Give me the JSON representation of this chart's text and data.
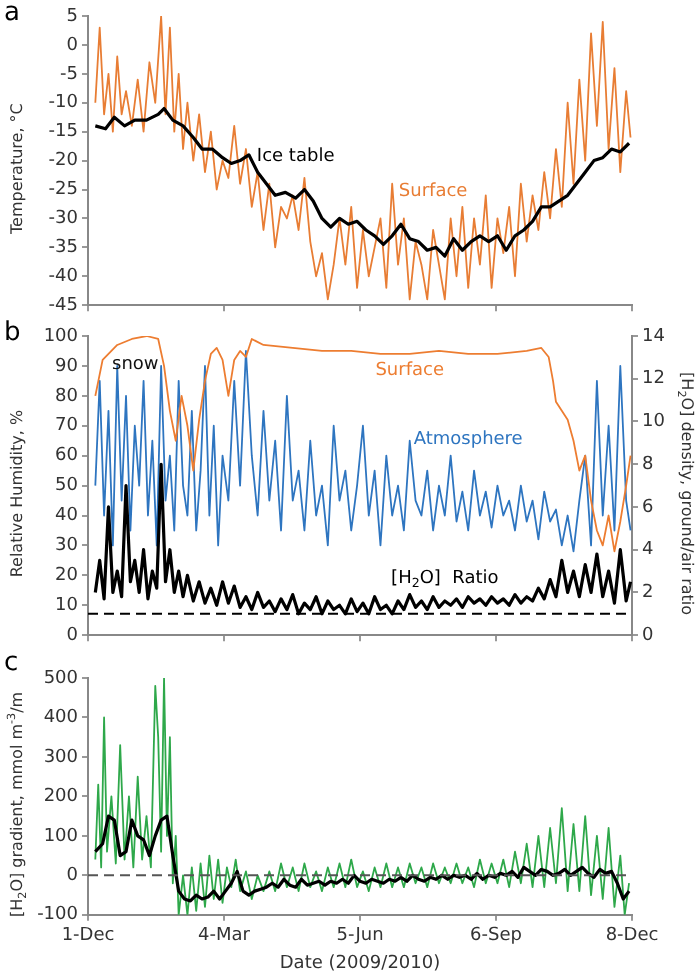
{
  "chart_data": [
    {
      "type": "line",
      "title": "a",
      "ylabel": "Temperature, °C",
      "xlim": [
        "2009-12-01",
        "2010-12-08"
      ],
      "ylim": [
        -45,
        5
      ],
      "yticks": [
        -45,
        -40,
        -35,
        -30,
        -25,
        -20,
        -15,
        -10,
        -5,
        0,
        5
      ],
      "grid": false,
      "legend": false,
      "tick_labels": "y",
      "series": [
        {
          "name": "Surface",
          "color": "#e87d34",
          "x": [
            "2009-12-06",
            "2009-12-09",
            "2009-12-12",
            "2009-12-15",
            "2009-12-18",
            "2009-12-21",
            "2009-12-24",
            "2009-12-27",
            "2009-12-31",
            "2010-01-04",
            "2010-01-08",
            "2010-01-12",
            "2010-01-16",
            "2010-01-20",
            "2010-01-23",
            "2010-01-26",
            "2010-01-29",
            "2010-02-01",
            "2010-02-04",
            "2010-02-07",
            "2010-02-11",
            "2010-02-15",
            "2010-02-19",
            "2010-02-23",
            "2010-02-27",
            "2010-03-03",
            "2010-03-07",
            "2010-03-11",
            "2010-03-15",
            "2010-03-19",
            "2010-03-23",
            "2010-03-27",
            "2010-03-31",
            "2010-04-04",
            "2010-04-08",
            "2010-04-12",
            "2010-04-16",
            "2010-04-20",
            "2010-04-24",
            "2010-04-28",
            "2010-05-02",
            "2010-05-06",
            "2010-05-10",
            "2010-05-14",
            "2010-05-18",
            "2010-05-22",
            "2010-05-26",
            "2010-05-30",
            "2010-06-03",
            "2010-06-07",
            "2010-06-11",
            "2010-06-15",
            "2010-06-19",
            "2010-06-23",
            "2010-06-27",
            "2010-07-01",
            "2010-07-05",
            "2010-07-09",
            "2010-07-13",
            "2010-07-17",
            "2010-07-21",
            "2010-07-25",
            "2010-07-29",
            "2010-08-02",
            "2010-08-06",
            "2010-08-10",
            "2010-08-14",
            "2010-08-18",
            "2010-08-22",
            "2010-08-26",
            "2010-08-30",
            "2010-09-03",
            "2010-09-07",
            "2010-09-11",
            "2010-09-15",
            "2010-09-19",
            "2010-09-23",
            "2010-09-27",
            "2010-10-01",
            "2010-10-05",
            "2010-10-09",
            "2010-10-13",
            "2010-10-17",
            "2010-10-21",
            "2010-10-25",
            "2010-10-29",
            "2010-11-02",
            "2010-11-06",
            "2010-11-10",
            "2010-11-14",
            "2010-11-18",
            "2010-11-22",
            "2010-11-26",
            "2010-11-30",
            "2010-12-04",
            "2010-12-07"
          ],
          "values": [
            -10,
            3,
            -12,
            -5,
            -15,
            -2,
            -12,
            -8,
            -14,
            -6,
            -15,
            -3,
            -10,
            5,
            -12,
            3,
            -15,
            -5,
            -18,
            -10,
            -20,
            -12,
            -22,
            -15,
            -25,
            -20,
            -23,
            -14,
            -24,
            -18,
            -28,
            -22,
            -32,
            -24,
            -35,
            -28,
            -30,
            -26,
            -32,
            -23,
            -34,
            -40,
            -36,
            -44,
            -38,
            -30,
            -38,
            -28,
            -42,
            -32,
            -40,
            -35,
            -30,
            -42,
            -24,
            -38,
            -30,
            -44,
            -34,
            -38,
            -44,
            -32,
            -38,
            -44,
            -30,
            -40,
            -28,
            -42,
            -30,
            -38,
            -26,
            -42,
            -30,
            -36,
            -28,
            -40,
            -24,
            -34,
            -26,
            -32,
            -22,
            -30,
            -18,
            -28,
            -10,
            -24,
            -6,
            -20,
            2,
            -14,
            4,
            -18,
            -4,
            -22,
            -8,
            -16
          ]
        },
        {
          "name": "Ice table",
          "color": "#000000",
          "x": [
            "2009-12-06",
            "2009-12-13",
            "2009-12-19",
            "2009-12-26",
            "2010-01-02",
            "2010-01-10",
            "2010-01-18",
            "2010-01-22",
            "2010-01-28",
            "2010-02-04",
            "2010-02-11",
            "2010-02-17",
            "2010-02-24",
            "2010-03-03",
            "2010-03-09",
            "2010-03-15",
            "2010-03-21",
            "2010-03-27",
            "2010-04-02",
            "2010-04-08",
            "2010-04-15",
            "2010-04-22",
            "2010-04-28",
            "2010-05-04",
            "2010-05-10",
            "2010-05-16",
            "2010-05-22",
            "2010-05-28",
            "2010-06-03",
            "2010-06-09",
            "2010-06-15",
            "2010-06-21",
            "2010-06-27",
            "2010-07-03",
            "2010-07-09",
            "2010-07-15",
            "2010-07-21",
            "2010-07-27",
            "2010-08-02",
            "2010-08-08",
            "2010-08-14",
            "2010-08-20",
            "2010-08-26",
            "2010-09-01",
            "2010-09-07",
            "2010-09-13",
            "2010-09-19",
            "2010-09-25",
            "2010-10-01",
            "2010-10-07",
            "2010-10-13",
            "2010-10-19",
            "2010-10-25",
            "2010-10-31",
            "2010-11-06",
            "2010-11-12",
            "2010-11-18",
            "2010-11-24",
            "2010-11-30",
            "2010-12-06"
          ],
          "values": [
            -14,
            -14.5,
            -12.5,
            -14,
            -13,
            -13,
            -12,
            -11,
            -13,
            -14,
            -16,
            -18,
            -18,
            -19.5,
            -20.5,
            -20,
            -19,
            -22,
            -24,
            -26,
            -25.5,
            -26.5,
            -25,
            -27,
            -30,
            -31.5,
            -30,
            -31,
            -30.5,
            -32,
            -33,
            -34.5,
            -33,
            -31,
            -33.5,
            -34,
            -35.5,
            -35,
            -36.5,
            -33.5,
            -35.5,
            -34,
            -33,
            -34,
            -33,
            -35.5,
            -33,
            -32,
            -30.5,
            -28,
            -28,
            -27,
            -26,
            -24,
            -22,
            -20,
            -19.5,
            -18,
            -18.5,
            -17
          ]
        }
      ]
    },
    {
      "type": "line",
      "title": "b",
      "ylabel": "Relative Humidity, %",
      "y2label": "[H$_{2}$O] density, ground/air ratio",
      "xlim": [
        "2009-12-01",
        "2010-12-08"
      ],
      "ylim": [
        0,
        100
      ],
      "yticks": [
        0,
        10,
        20,
        30,
        40,
        50,
        60,
        70,
        80,
        90,
        100
      ],
      "y2lim": [
        0,
        14
      ],
      "y2ticks": [
        0,
        2,
        4,
        6,
        8,
        10,
        12,
        14
      ],
      "grid": false,
      "legend": false,
      "tick_labels": "y",
      "ref_lines": [
        {
          "axis": "y2",
          "value": 1,
          "label": null,
          "color": "#000000",
          "line_style": "dashed"
        }
      ],
      "annotations": [
        "snow"
      ],
      "series": [
        {
          "name": "Atmosphere",
          "color": "#2e75c0",
          "x": [
            "2009-12-06",
            "2009-12-09",
            "2009-12-12",
            "2009-12-15",
            "2009-12-18",
            "2009-12-21",
            "2009-12-24",
            "2009-12-27",
            "2009-12-30",
            "2010-01-02",
            "2010-01-05",
            "2010-01-08",
            "2010-01-11",
            "2010-01-14",
            "2010-01-17",
            "2010-01-20",
            "2010-01-23",
            "2010-01-26",
            "2010-01-29",
            "2010-02-01",
            "2010-02-04",
            "2010-02-07",
            "2010-02-10",
            "2010-02-13",
            "2010-02-16",
            "2010-02-19",
            "2010-02-22",
            "2010-02-25",
            "2010-02-28",
            "2010-03-03",
            "2010-03-07",
            "2010-03-11",
            "2010-03-15",
            "2010-03-19",
            "2010-03-23",
            "2010-03-27",
            "2010-03-31",
            "2010-04-04",
            "2010-04-08",
            "2010-04-12",
            "2010-04-16",
            "2010-04-20",
            "2010-04-24",
            "2010-04-28",
            "2010-05-02",
            "2010-05-06",
            "2010-05-10",
            "2010-05-14",
            "2010-05-18",
            "2010-05-22",
            "2010-05-26",
            "2010-05-30",
            "2010-06-03",
            "2010-06-07",
            "2010-06-11",
            "2010-06-15",
            "2010-06-19",
            "2010-06-23",
            "2010-06-27",
            "2010-07-01",
            "2010-07-05",
            "2010-07-09",
            "2010-07-13",
            "2010-07-17",
            "2010-07-21",
            "2010-07-25",
            "2010-07-29",
            "2010-08-02",
            "2010-08-06",
            "2010-08-10",
            "2010-08-14",
            "2010-08-18",
            "2010-08-22",
            "2010-08-26",
            "2010-08-30",
            "2010-09-03",
            "2010-09-07",
            "2010-09-11",
            "2010-09-15",
            "2010-09-19",
            "2010-09-23",
            "2010-09-27",
            "2010-10-01",
            "2010-10-05",
            "2010-10-09",
            "2010-10-13",
            "2010-10-17",
            "2010-10-21",
            "2010-10-25",
            "2010-10-29",
            "2010-11-02",
            "2010-11-06",
            "2010-11-10",
            "2010-11-14",
            "2010-11-18",
            "2010-11-22",
            "2010-11-26",
            "2010-11-30",
            "2010-12-04",
            "2010-12-07"
          ],
          "values": [
            50,
            85,
            40,
            75,
            30,
            90,
            45,
            80,
            35,
            70,
            50,
            85,
            40,
            65,
            30,
            90,
            45,
            60,
            35,
            85,
            50,
            40,
            75,
            35,
            55,
            90,
            40,
            70,
            30,
            60,
            45,
            85,
            50,
            95,
            60,
            40,
            75,
            45,
            65,
            35,
            80,
            45,
            55,
            35,
            65,
            40,
            50,
            30,
            70,
            45,
            55,
            35,
            50,
            70,
            40,
            55,
            30,
            60,
            40,
            50,
            35,
            65,
            45,
            40,
            55,
            35,
            50,
            40,
            60,
            38,
            48,
            35,
            55,
            40,
            48,
            36,
            50,
            40,
            45,
            35,
            50,
            38,
            45,
            32,
            48,
            38,
            42,
            30,
            40,
            28,
            45,
            60,
            30,
            85,
            40,
            70,
            35,
            90,
            45,
            35
          ]
        },
        {
          "name": "Surface",
          "color": "#ed7d31",
          "x": [
            "2009-12-06",
            "2009-12-11",
            "2009-12-21",
            "2009-12-31",
            "2010-01-10",
            "2010-01-18",
            "2010-01-22",
            "2010-01-26",
            "2010-01-30",
            "2010-02-03",
            "2010-02-07",
            "2010-02-11",
            "2010-02-15",
            "2010-02-19",
            "2010-02-23",
            "2010-02-27",
            "2010-03-03",
            "2010-03-07",
            "2010-03-11",
            "2010-03-15",
            "2010-03-19",
            "2010-03-23",
            "2010-03-31",
            "2010-04-20",
            "2010-05-10",
            "2010-05-30",
            "2010-06-19",
            "2010-07-09",
            "2010-07-29",
            "2010-08-18",
            "2010-09-07",
            "2010-09-27",
            "2010-10-07",
            "2010-10-12",
            "2010-10-15",
            "2010-10-17",
            "2010-10-21",
            "2010-10-25",
            "2010-10-29",
            "2010-11-02",
            "2010-11-06",
            "2010-11-10",
            "2010-11-14",
            "2010-11-18",
            "2010-11-22",
            "2010-11-26",
            "2010-11-30",
            "2010-12-04",
            "2010-12-07"
          ],
          "values": [
            80,
            92,
            97,
            99,
            100,
            99,
            90,
            75,
            65,
            80,
            70,
            55,
            72,
            85,
            94,
            96,
            92,
            80,
            92,
            95,
            93,
            99,
            97,
            96,
            95,
            95,
            94,
            94,
            95,
            94,
            94,
            95,
            96,
            93,
            85,
            78,
            75,
            72,
            65,
            55,
            60,
            45,
            35,
            30,
            40,
            28,
            38,
            50,
            60
          ]
        },
        {
          "name": "[H$_{2}$O]  Ratio",
          "color": "#000000",
          "axis": "y2",
          "x": [
            "2009-12-06",
            "2009-12-09",
            "2009-12-12",
            "2009-12-15",
            "2009-12-18",
            "2009-12-21",
            "2009-12-24",
            "2009-12-27",
            "2009-12-30",
            "2010-01-02",
            "2010-01-05",
            "2010-01-08",
            "2010-01-11",
            "2010-01-14",
            "2010-01-17",
            "2010-01-20",
            "2010-01-23",
            "2010-01-26",
            "2010-01-29",
            "2010-02-01",
            "2010-02-04",
            "2010-02-07",
            "2010-02-11",
            "2010-02-15",
            "2010-02-19",
            "2010-02-23",
            "2010-02-27",
            "2010-03-03",
            "2010-03-07",
            "2010-03-11",
            "2010-03-15",
            "2010-03-19",
            "2010-03-23",
            "2010-03-27",
            "2010-03-31",
            "2010-04-04",
            "2010-04-08",
            "2010-04-12",
            "2010-04-16",
            "2010-04-20",
            "2010-04-24",
            "2010-04-28",
            "2010-05-02",
            "2010-05-06",
            "2010-05-10",
            "2010-05-14",
            "2010-05-18",
            "2010-05-22",
            "2010-05-26",
            "2010-05-30",
            "2010-06-03",
            "2010-06-07",
            "2010-06-11",
            "2010-06-15",
            "2010-06-19",
            "2010-06-23",
            "2010-06-27",
            "2010-07-01",
            "2010-07-05",
            "2010-07-09",
            "2010-07-13",
            "2010-07-17",
            "2010-07-21",
            "2010-07-25",
            "2010-07-29",
            "2010-08-02",
            "2010-08-06",
            "2010-08-10",
            "2010-08-14",
            "2010-08-18",
            "2010-08-22",
            "2010-08-26",
            "2010-08-30",
            "2010-09-03",
            "2010-09-07",
            "2010-09-11",
            "2010-09-15",
            "2010-09-19",
            "2010-09-23",
            "2010-09-27",
            "2010-10-01",
            "2010-10-05",
            "2010-10-09",
            "2010-10-13",
            "2010-10-17",
            "2010-10-21",
            "2010-10-25",
            "2010-10-29",
            "2010-11-02",
            "2010-11-06",
            "2010-11-10",
            "2010-11-14",
            "2010-11-18",
            "2010-11-22",
            "2010-11-26",
            "2010-11-30",
            "2010-12-04",
            "2010-12-07"
          ],
          "values": [
            2,
            3.5,
            1.7,
            6,
            2,
            3,
            1.8,
            7,
            2.5,
            3.5,
            2,
            4,
            1.7,
            3,
            2.2,
            8,
            2.5,
            4,
            2,
            3,
            1.8,
            2.8,
            1.6,
            2.5,
            1.5,
            2.2,
            1.4,
            2.5,
            1.5,
            2.3,
            1.3,
            1.8,
            1.2,
            2,
            1.3,
            1.6,
            1.1,
            1.7,
            1.2,
            1.9,
            1,
            1.5,
            1.2,
            1.8,
            1,
            1.6,
            1.2,
            1.4,
            1,
            1.7,
            1.1,
            1.5,
            1,
            1.8,
            1.2,
            1.4,
            1,
            1.6,
            1.2,
            1.9,
            1.3,
            1.6,
            1.2,
            1.8,
            1.3,
            1.6,
            1.4,
            1.7,
            1.3,
            1.8,
            1.5,
            1.7,
            1.4,
            1.8,
            1.5,
            1.7,
            1.4,
            1.9,
            1.5,
            1.8,
            1.6,
            2.2,
            1.7,
            2.6,
            1.8,
            3.5,
            2,
            3,
            1.8,
            3.3,
            2,
            3.8,
            1.8,
            3,
            1.5,
            4,
            1.6,
            2.5
          ]
        }
      ]
    },
    {
      "type": "line",
      "title": "c",
      "xlabel": "Date (2009/2010)",
      "ylabel": "[H$_{2}$O] gradient, mmol m$^{-3}$/m",
      "xlim": [
        "2009-12-01",
        "2010-12-08"
      ],
      "xticks": [
        {
          "value": "2009-12-01",
          "label": "1-Dec"
        },
        {
          "value": "2010-03-04",
          "label": "4-Mar"
        },
        {
          "value": "2010-06-05",
          "label": "5-Jun"
        },
        {
          "value": "2010-09-06",
          "label": "6-Sep"
        },
        {
          "value": "2010-12-08",
          "label": "8-Dec"
        }
      ],
      "ylim": [
        -100,
        500
      ],
      "yticks": [
        -100,
        0,
        100,
        200,
        300,
        400,
        500
      ],
      "grid": false,
      "legend": false,
      "ref_lines": [
        {
          "axis": "y",
          "value": 0,
          "label": null,
          "color": "#555555",
          "line_style": "dashed"
        }
      ],
      "series": [
        {
          "color": "#2ea84a",
          "x": [
            "2009-12-06",
            "2009-12-08",
            "2009-12-10",
            "2009-12-12",
            "2009-12-14",
            "2009-12-17",
            "2009-12-20",
            "2009-12-23",
            "2009-12-26",
            "2009-12-29",
            "2010-01-01",
            "2010-01-04",
            "2010-01-07",
            "2010-01-10",
            "2010-01-13",
            "2010-01-16",
            "2010-01-18",
            "2010-01-20",
            "2010-01-22",
            "2010-01-24",
            "2010-01-26",
            "2010-01-28",
            "2010-01-30",
            "2010-02-01",
            "2010-02-04",
            "2010-02-07",
            "2010-02-10",
            "2010-02-13",
            "2010-02-16",
            "2010-02-19",
            "2010-02-22",
            "2010-02-25",
            "2010-02-28",
            "2010-03-03",
            "2010-03-06",
            "2010-03-09",
            "2010-03-12",
            "2010-03-15",
            "2010-03-19",
            "2010-03-23",
            "2010-03-27",
            "2010-03-31",
            "2010-04-04",
            "2010-04-08",
            "2010-04-12",
            "2010-04-16",
            "2010-04-20",
            "2010-04-24",
            "2010-04-28",
            "2010-05-02",
            "2010-05-06",
            "2010-05-10",
            "2010-05-14",
            "2010-05-18",
            "2010-05-22",
            "2010-05-26",
            "2010-05-30",
            "2010-06-03",
            "2010-06-07",
            "2010-06-11",
            "2010-06-15",
            "2010-06-19",
            "2010-06-23",
            "2010-06-27",
            "2010-07-01",
            "2010-07-05",
            "2010-07-09",
            "2010-07-13",
            "2010-07-17",
            "2010-07-21",
            "2010-07-25",
            "2010-07-29",
            "2010-08-02",
            "2010-08-06",
            "2010-08-10",
            "2010-08-14",
            "2010-08-18",
            "2010-08-22",
            "2010-08-26",
            "2010-08-30",
            "2010-09-03",
            "2010-09-07",
            "2010-09-11",
            "2010-09-15",
            "2010-09-19",
            "2010-09-23",
            "2010-09-27",
            "2010-10-01",
            "2010-10-05",
            "2010-10-09",
            "2010-10-13",
            "2010-10-17",
            "2010-10-21",
            "2010-10-25",
            "2010-10-29",
            "2010-11-02",
            "2010-11-06",
            "2010-11-10",
            "2010-11-14",
            "2010-11-18",
            "2010-11-22",
            "2010-11-26",
            "2010-11-30",
            "2010-12-03",
            "2010-12-06"
          ],
          "values": [
            40,
            230,
            20,
            400,
            60,
            200,
            30,
            330,
            40,
            200,
            20,
            250,
            40,
            150,
            20,
            480,
            350,
            60,
            500,
            100,
            350,
            -20,
            100,
            -100,
            0,
            -100,
            20,
            -90,
            30,
            -80,
            50,
            -60,
            40,
            -70,
            20,
            -30,
            40,
            -40,
            10,
            -60,
            0,
            -40,
            10,
            -40,
            30,
            -30,
            20,
            -40,
            30,
            -30,
            10,
            -40,
            20,
            -30,
            30,
            -30,
            40,
            -30,
            10,
            -40,
            20,
            -30,
            30,
            -30,
            20,
            -30,
            30,
            -20,
            20,
            -30,
            30,
            -20,
            20,
            -20,
            30,
            -20,
            20,
            -30,
            40,
            -20,
            30,
            -20,
            40,
            -30,
            60,
            -20,
            80,
            -30,
            100,
            -30,
            120,
            -20,
            170,
            -40,
            130,
            -40,
            150,
            -50,
            100,
            -60,
            120,
            -80,
            50,
            -100,
            -20
          ]
        },
        {
          "color": "#000000",
          "x": [
            "2009-12-06",
            "2009-12-11",
            "2009-12-15",
            "2009-12-19",
            "2009-12-23",
            "2009-12-27",
            "2009-12-31",
            "2010-01-04",
            "2010-01-08",
            "2010-01-12",
            "2010-01-16",
            "2010-01-20",
            "2010-01-24",
            "2010-01-28",
            "2010-02-01",
            "2010-02-05",
            "2010-02-09",
            "2010-02-13",
            "2010-02-17",
            "2010-02-21",
            "2010-02-25",
            "2010-03-01",
            "2010-03-05",
            "2010-03-09",
            "2010-03-13",
            "2010-03-17",
            "2010-03-21",
            "2010-03-25",
            "2010-03-29",
            "2010-04-02",
            "2010-04-06",
            "2010-04-10",
            "2010-04-14",
            "2010-04-18",
            "2010-04-22",
            "2010-04-26",
            "2010-04-30",
            "2010-05-04",
            "2010-05-08",
            "2010-05-12",
            "2010-05-16",
            "2010-05-20",
            "2010-05-24",
            "2010-05-28",
            "2010-06-01",
            "2010-06-05",
            "2010-06-09",
            "2010-06-13",
            "2010-06-17",
            "2010-06-21",
            "2010-06-25",
            "2010-06-29",
            "2010-07-03",
            "2010-07-07",
            "2010-07-11",
            "2010-07-15",
            "2010-07-19",
            "2010-07-23",
            "2010-07-27",
            "2010-07-31",
            "2010-08-04",
            "2010-08-08",
            "2010-08-12",
            "2010-08-16",
            "2010-08-20",
            "2010-08-24",
            "2010-08-28",
            "2010-09-01",
            "2010-09-05",
            "2010-09-09",
            "2010-09-13",
            "2010-09-17",
            "2010-09-21",
            "2010-09-25",
            "2010-09-29",
            "2010-10-03",
            "2010-10-07",
            "2010-10-11",
            "2010-10-15",
            "2010-10-19",
            "2010-10-23",
            "2010-10-27",
            "2010-10-31",
            "2010-11-04",
            "2010-11-08",
            "2010-11-12",
            "2010-11-16",
            "2010-11-20",
            "2010-11-24",
            "2010-11-28",
            "2010-12-02",
            "2010-12-06"
          ],
          "values": [
            60,
            80,
            150,
            140,
            50,
            60,
            140,
            100,
            90,
            50,
            100,
            140,
            150,
            50,
            -40,
            -60,
            -65,
            -50,
            -60,
            -55,
            -40,
            -60,
            -40,
            -20,
            10,
            -40,
            -50,
            -40,
            -35,
            -30,
            -20,
            -30,
            -10,
            -25,
            -30,
            -10,
            -25,
            -20,
            -15,
            -25,
            -15,
            -20,
            -10,
            -20,
            0,
            -15,
            -20,
            -10,
            -15,
            -20,
            -10,
            -15,
            -5,
            -15,
            0,
            -10,
            -15,
            -5,
            -10,
            0,
            -10,
            0,
            -5,
            0,
            -10,
            5,
            -10,
            0,
            -5,
            5,
            0,
            10,
            -5,
            20,
            10,
            0,
            15,
            10,
            0,
            5,
            15,
            0,
            10,
            20,
            5,
            -5,
            15,
            5,
            10,
            -20,
            -60,
            -40
          ]
        }
      ]
    }
  ]
}
